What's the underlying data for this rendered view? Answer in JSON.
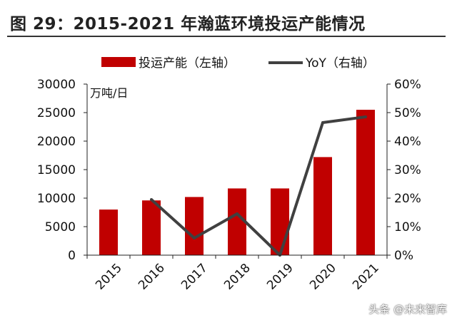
{
  "figure_title": "图 29：2015-2021 年瀚蓝环境投运产能情况",
  "watermark": "头条 @未来智库",
  "chart_data": {
    "type": "bar",
    "categories": [
      "2015",
      "2016",
      "2017",
      "2018",
      "2019",
      "2020",
      "2021"
    ],
    "series": [
      {
        "name": "投运产能（左轴）",
        "type": "bar",
        "axis": "left",
        "color": "#c00000",
        "values": [
          8000,
          9600,
          10200,
          11700,
          11700,
          17200,
          25500
        ]
      },
      {
        "name": "YoY（右轴）",
        "type": "line",
        "axis": "right",
        "color": "#404040",
        "values": [
          null,
          19.5,
          6.0,
          14.5,
          0.0,
          46.5,
          48.5
        ]
      }
    ],
    "y_left": {
      "label": "万吨/日",
      "ylim": [
        0,
        30000
      ],
      "ticks": [
        "0",
        "5000",
        "10000",
        "15000",
        "20000",
        "25000",
        "30000"
      ]
    },
    "y_right": {
      "ylim": [
        0,
        60
      ],
      "ticks": [
        "0%",
        "10%",
        "20%",
        "30%",
        "40%",
        "50%",
        "60%"
      ]
    },
    "legend_position": "top",
    "grid": false
  }
}
